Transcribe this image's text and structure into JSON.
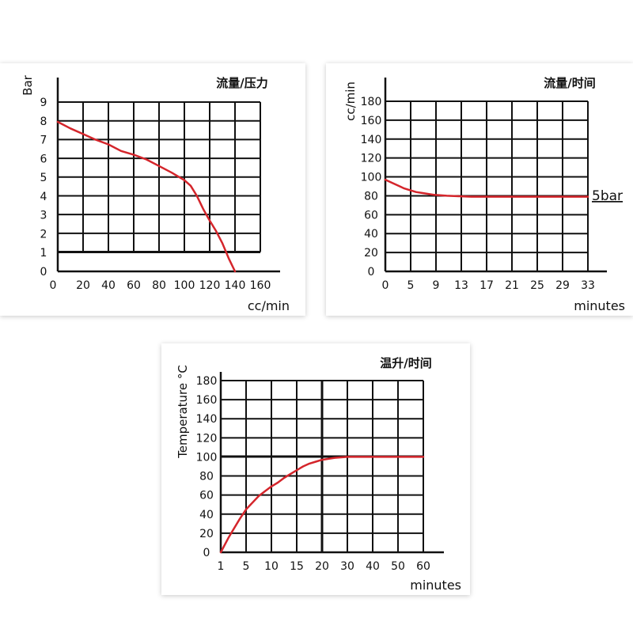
{
  "chart_data": [
    {
      "type": "line",
      "title": "流量/压力",
      "xlabel": "cc/min",
      "ylabel": "Bar",
      "xlim": [
        0,
        160
      ],
      "ylim": [
        0,
        9
      ],
      "xticks": [
        "0",
        "20",
        "40",
        "60",
        "80",
        "100",
        "120",
        "140",
        "160"
      ],
      "yticks": [
        "0",
        "1",
        "2",
        "3",
        "4",
        "5",
        "6",
        "7",
        "8",
        "9"
      ],
      "grid": true,
      "series": [
        {
          "x": [
            0,
            10,
            20,
            30,
            40,
            50,
            60,
            70,
            80,
            90,
            100,
            105,
            110,
            115,
            120,
            125,
            130,
            135,
            140
          ],
          "y": [
            7.95,
            7.6,
            7.3,
            7.0,
            6.75,
            6.4,
            6.2,
            5.95,
            5.6,
            5.25,
            4.85,
            4.55,
            4.0,
            3.3,
            2.7,
            2.15,
            1.5,
            0.7,
            0.0
          ]
        }
      ]
    },
    {
      "type": "line",
      "title": "流量/时间",
      "xlabel": "minutes",
      "ylabel": "cc/min",
      "annotation": "5bar",
      "xlim": [
        0,
        33
      ],
      "ylim": [
        0,
        200
      ],
      "xticks": [
        "0",
        "5",
        "9",
        "13",
        "17",
        "21",
        "25",
        "29",
        "33"
      ],
      "yticks": [
        "0",
        "20",
        "40",
        "60",
        "80",
        "100",
        "120",
        "140",
        "160",
        "180"
      ],
      "grid": true,
      "series": [
        {
          "x": [
            0,
            1,
            2,
            3,
            4,
            5,
            6,
            8,
            10,
            12,
            14,
            16,
            18,
            22,
            26,
            30,
            33
          ],
          "y": [
            97,
            94,
            91,
            88,
            86,
            84,
            83,
            81,
            80,
            79.5,
            79,
            79,
            79,
            79,
            79,
            79,
            79
          ]
        }
      ]
    },
    {
      "type": "line",
      "title": "温升/时间",
      "xlabel": "minutes",
      "ylabel": "Temperature °C",
      "xlim": [
        1,
        60
      ],
      "ylim": [
        0,
        200
      ],
      "xticks": [
        "1",
        "5",
        "10",
        "15",
        "20",
        "30",
        "40",
        "50",
        "60"
      ],
      "yticks": [
        "0",
        "20",
        "40",
        "60",
        "80",
        "100",
        "120",
        "140",
        "160",
        "180"
      ],
      "grid": true,
      "series": [
        {
          "x_index": [
            0,
            0.1,
            0.3,
            0.5,
            0.75,
            1,
            1.25,
            1.5,
            1.75,
            2,
            2.25,
            2.5,
            2.75,
            3,
            3.25,
            3.5,
            3.75,
            4,
            4.5,
            5,
            6,
            7,
            8
          ],
          "y": [
            0,
            5,
            15,
            24,
            35,
            45,
            52,
            59,
            64,
            69,
            73,
            78,
            82,
            86,
            90,
            93,
            95,
            97,
            99,
            100,
            100,
            100,
            100
          ]
        }
      ]
    }
  ]
}
